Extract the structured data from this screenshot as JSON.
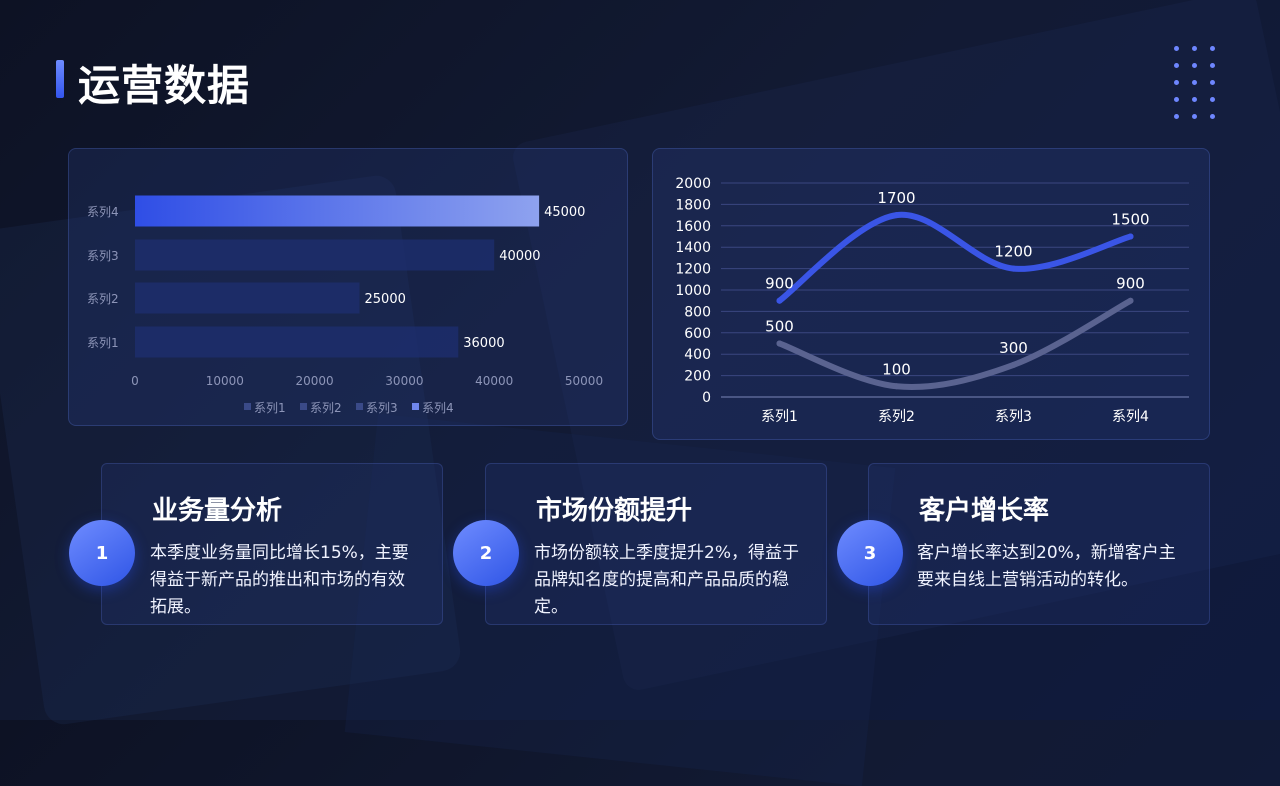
{
  "page": {
    "title": "运营数据"
  },
  "cards": [
    {
      "number": "1",
      "title": "业务量分析",
      "text": "本季度业务量同比增长15%，主要得益于新产品的推出和市场的有效拓展。"
    },
    {
      "number": "2",
      "title": "市场份额提升",
      "text": "市场份额较上季度提升2%，得益于品牌知名度的提高和产品品质的稳定。"
    },
    {
      "number": "3",
      "title": "客户增长率",
      "text": "客户增长率达到20%，新增客户主要来自线上营销活动的转化。"
    }
  ],
  "chart_data": [
    {
      "type": "bar",
      "orientation": "horizontal",
      "categories": [
        "系列1",
        "系列2",
        "系列3",
        "系列4"
      ],
      "values": [
        36000,
        25000,
        40000,
        45000
      ],
      "xlim": [
        0,
        50000
      ],
      "xticks": [
        "0",
        "10000",
        "20000",
        "30000",
        "40000",
        "50000"
      ],
      "legend": [
        "系列1",
        "系列2",
        "系列3",
        "系列4"
      ],
      "legend_position": "bottom",
      "grid": false,
      "colors": [
        "#1e2f70",
        "#1e2f70",
        "#1e2f70",
        "#3a5be8"
      ]
    },
    {
      "type": "line",
      "categories": [
        "系列1",
        "系列2",
        "系列3",
        "系列4"
      ],
      "series": [
        {
          "values": [
            900,
            1700,
            1200,
            1500
          ],
          "color": "#3a55e6"
        },
        {
          "values": [
            500,
            100,
            300,
            900
          ],
          "color": "#5a6390"
        }
      ],
      "ylim": [
        0,
        2000
      ],
      "yticks": [
        "0",
        "200",
        "400",
        "600",
        "800",
        "1000",
        "1200",
        "1400",
        "1600",
        "1800",
        "2000"
      ],
      "grid": true,
      "smooth": true
    }
  ]
}
